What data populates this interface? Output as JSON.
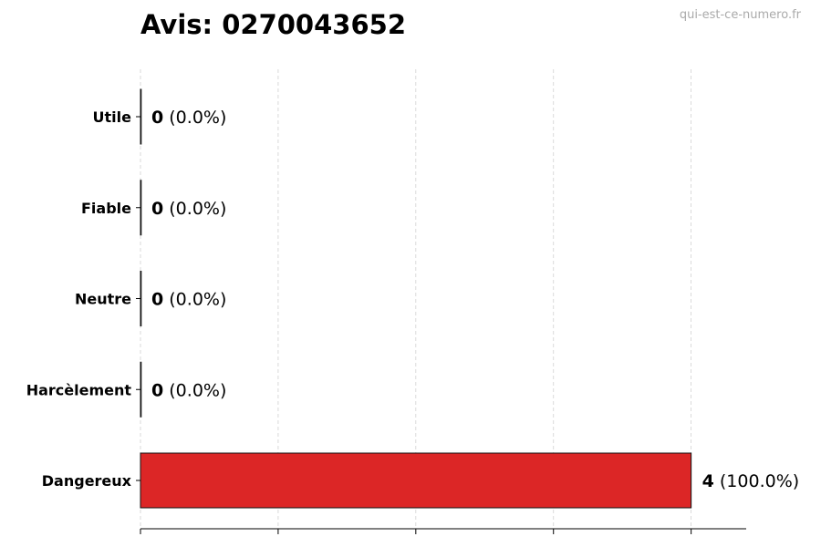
{
  "title": "Avis: 0270043652",
  "watermark": "qui-est-ce-numero.fr",
  "chart_data": {
    "type": "bar",
    "orientation": "horizontal",
    "title": "Avis: 0270043652",
    "categories": [
      "Utile",
      "Fiable",
      "Neutre",
      "Harcèlement",
      "Dangereux"
    ],
    "values": [
      0,
      0,
      0,
      0,
      4
    ],
    "labels": [
      "(0.0%)",
      "(0.0%)",
      "(0.0%)",
      "(0.0%)",
      "(100.0%)"
    ],
    "colors": [
      "#dc2626",
      "#dc2626",
      "#dc2626",
      "#dc2626",
      "#dc2626"
    ],
    "xlim": [
      0,
      4.4
    ],
    "xticks": [
      0,
      1,
      2,
      3,
      4
    ],
    "xtick_labels_shown": false,
    "grid": "x-dashed",
    "xlabel": "",
    "ylabel": ""
  }
}
